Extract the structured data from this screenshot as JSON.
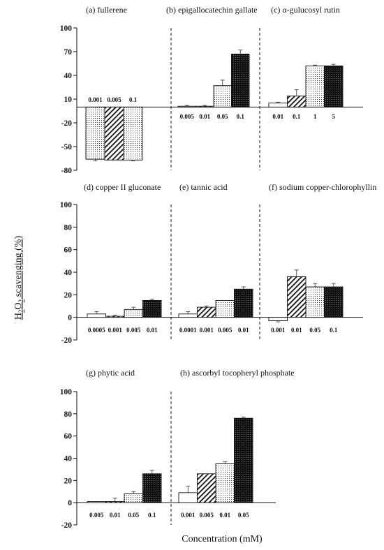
{
  "figure": {
    "xlabel": "Concentration (mM)",
    "ylabel": {
      "h": "H",
      "sub1": "2",
      "o": "O",
      "sub2": "2",
      "rest": " scavenging (%)"
    }
  },
  "chart_data": [
    {
      "type": "bar",
      "title": "(a) fullerene",
      "categories": [
        "0.001",
        "0.005",
        "0.1"
      ],
      "values": [
        -66,
        -67,
        -67
      ],
      "errors": [
        2,
        0,
        1
      ],
      "patterns": [
        "dots",
        "hatch",
        "dots"
      ],
      "ylim": [
        -80,
        100
      ],
      "yticks": [
        -80,
        -50,
        -20,
        10,
        40,
        70,
        100
      ],
      "category_labels_position": "top"
    },
    {
      "type": "bar",
      "title": "(b) epigallocatechin gallate",
      "categories": [
        "0.005",
        "0.01",
        "0.05",
        "0.1"
      ],
      "values": [
        1,
        1,
        27,
        67
      ],
      "errors": [
        1,
        1,
        7,
        5
      ],
      "patterns": [
        "white",
        "hatch",
        "dots",
        "black"
      ],
      "ylim": [
        -80,
        100
      ],
      "category_labels_position": "bottom"
    },
    {
      "type": "bar",
      "title": "(c) α-gulucosyl rutin",
      "categories": [
        "0.01",
        "0.1",
        "1",
        "5"
      ],
      "values": [
        5,
        14,
        52,
        52
      ],
      "errors": [
        1,
        8,
        1,
        2
      ],
      "patterns": [
        "white",
        "hatch",
        "dots",
        "black"
      ],
      "ylim": [
        -80,
        100
      ],
      "category_labels_position": "bottom"
    },
    {
      "type": "bar",
      "title": "(d) copper II gluconate",
      "categories": [
        "0.0005",
        "0.001",
        "0.005",
        "0.01"
      ],
      "values": [
        3,
        1,
        7,
        15
      ],
      "errors": [
        2,
        1,
        2,
        1
      ],
      "patterns": [
        "white",
        "hatch",
        "dots",
        "black"
      ],
      "ylim": [
        -20,
        100
      ],
      "yticks": [
        -20,
        0,
        20,
        40,
        60,
        80,
        100
      ]
    },
    {
      "type": "bar",
      "title": "(e) tannic acid",
      "categories": [
        "0.0001",
        "0.001",
        "0.005",
        "0.01"
      ],
      "values": [
        3,
        9,
        15,
        25
      ],
      "errors": [
        2,
        1,
        0,
        2
      ],
      "patterns": [
        "white",
        "hatch",
        "dots",
        "black"
      ],
      "ylim": [
        -20,
        100
      ]
    },
    {
      "type": "bar",
      "title": "(f) sodium copper-chlorophyllin",
      "categories": [
        "0.001",
        "0.01",
        "0.05",
        "0.1"
      ],
      "values": [
        -3,
        36,
        27,
        27
      ],
      "errors": [
        1,
        6,
        3,
        3
      ],
      "patterns": [
        "white",
        "hatch",
        "dots",
        "black"
      ],
      "ylim": [
        -20,
        100
      ]
    },
    {
      "type": "bar",
      "title": "(g) phytic acid",
      "categories": [
        "0.005",
        "0.01",
        "0.05",
        "0.1"
      ],
      "values": [
        1,
        1,
        8,
        26
      ],
      "errors": [
        0,
        3,
        2,
        3
      ],
      "patterns": [
        "white",
        "hatch",
        "dots",
        "black"
      ],
      "ylim": [
        -20,
        100
      ],
      "yticks": [
        -20,
        0,
        20,
        40,
        60,
        80,
        100
      ]
    },
    {
      "type": "bar",
      "title": "(h) ascorbyl tocopheryl phosphate",
      "categories": [
        "0.001",
        "0.005",
        "0.01",
        "0.05"
      ],
      "values": [
        9,
        26,
        35,
        76
      ],
      "errors": [
        6,
        0,
        2,
        1
      ],
      "patterns": [
        "white",
        "hatch",
        "dots",
        "black"
      ],
      "ylim": [
        -20,
        100
      ]
    }
  ]
}
